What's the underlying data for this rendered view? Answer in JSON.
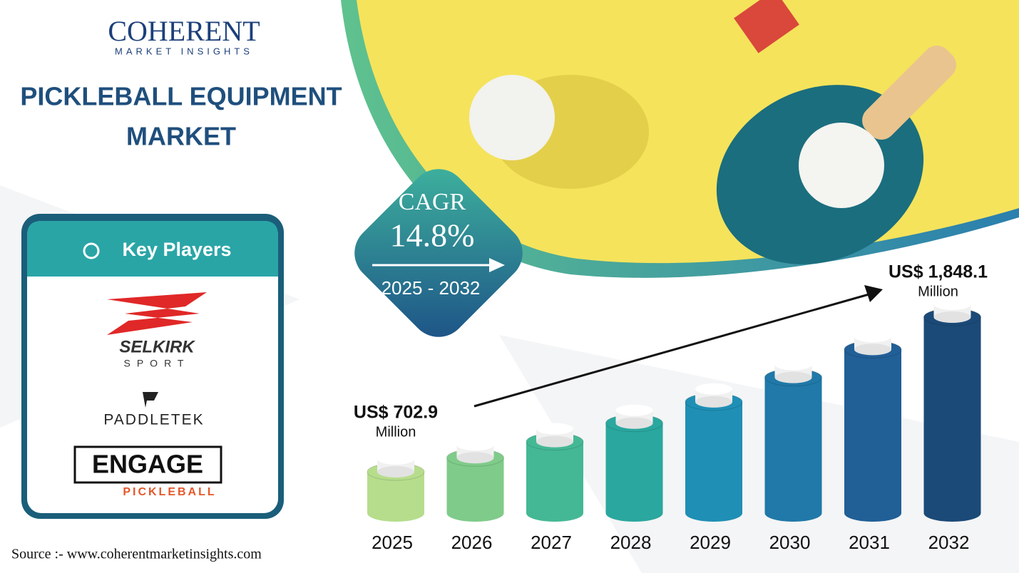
{
  "logo": {
    "name": "COHERENT",
    "tagline": "MARKET INSIGHTS"
  },
  "title_lines": [
    "PICKLEBALL EQUIPMENT",
    "MARKET"
  ],
  "cagr": {
    "label": "CAGR",
    "value": "14.8%",
    "period": "2025 - 2032"
  },
  "key_players": {
    "heading": "Key Players",
    "players": [
      {
        "name": "SELKIRK",
        "sub": "SPORT"
      },
      {
        "name": "PADDLETEK"
      },
      {
        "name": "ENGAGE",
        "sub": "PICKLEBALL"
      }
    ]
  },
  "source": "Source :- www.coherentmarketinsights.com",
  "chart_data": {
    "type": "bar",
    "categories": [
      "2025",
      "2026",
      "2027",
      "2028",
      "2029",
      "2030",
      "2031",
      "2032"
    ],
    "values": [
      702.9,
      806.9,
      926.3,
      1063.4,
      1220.8,
      1401.5,
      1608.9,
      1848.1
    ],
    "value_labels": [
      "US$ 702.9",
      null,
      null,
      null,
      null,
      null,
      null,
      "US$ 1,848.1"
    ],
    "unit": "Million",
    "colors": [
      "#b6dd8c",
      "#7fcb8a",
      "#44b894",
      "#2aa79e",
      "#1f8fb5",
      "#2079a8",
      "#215f97",
      "#1b4a78"
    ]
  }
}
